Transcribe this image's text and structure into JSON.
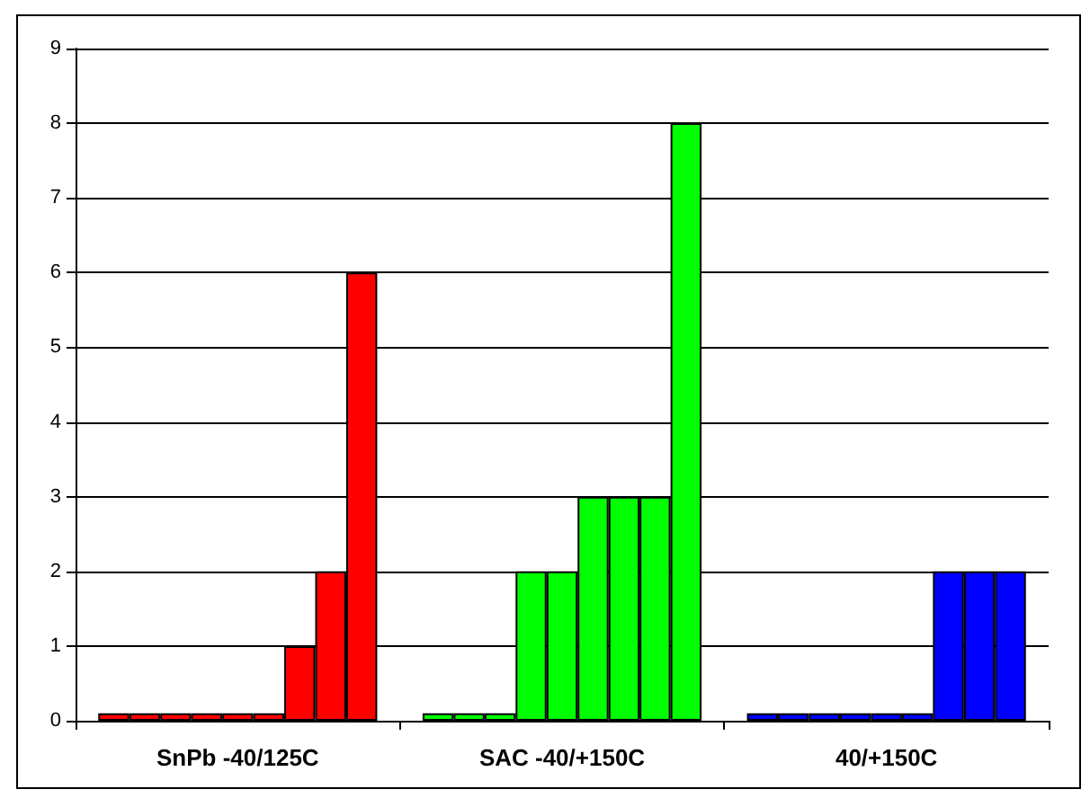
{
  "chart_data": {
    "type": "bar",
    "categories": [
      "SnPb -40/125C",
      "SAC -40/+150C",
      "40/+150C"
    ],
    "series": [
      {
        "colors": [
          "#ff0000",
          "#00ff00",
          "#0000ff"
        ],
        "values": [
          0.1,
          0.1,
          0.1
        ]
      },
      {
        "colors": [
          "#ff0000",
          "#00ff00",
          "#0000ff"
        ],
        "values": [
          0.1,
          0.1,
          0.1
        ]
      },
      {
        "colors": [
          "#ff0000",
          "#00ff00",
          "#0000ff"
        ],
        "values": [
          0.1,
          0.1,
          0.1
        ]
      },
      {
        "colors": [
          "#ff0000",
          "#00ff00",
          "#0000ff"
        ],
        "values": [
          0.1,
          2,
          0.1
        ]
      },
      {
        "colors": [
          "#ff0000",
          "#00ff00",
          "#0000ff"
        ],
        "values": [
          0.1,
          2,
          0.1
        ]
      },
      {
        "colors": [
          "#ff0000",
          "#00ff00",
          "#0000ff"
        ],
        "values": [
          0.1,
          3,
          0.1
        ]
      },
      {
        "colors": [
          "#ff0000",
          "#00ff00",
          "#0000ff"
        ],
        "values": [
          1,
          3,
          2
        ]
      },
      {
        "colors": [
          "#ff0000",
          "#00ff00",
          "#0000ff"
        ],
        "values": [
          2,
          3,
          2
        ]
      },
      {
        "colors": [
          "#ff0000",
          "#00ff00",
          "#0000ff"
        ],
        "values": [
          6,
          8,
          2
        ]
      }
    ],
    "ylim": [
      0,
      9
    ],
    "yticks": [
      0,
      1,
      2,
      3,
      4,
      5,
      6,
      7,
      8,
      9
    ],
    "grid": "y"
  }
}
